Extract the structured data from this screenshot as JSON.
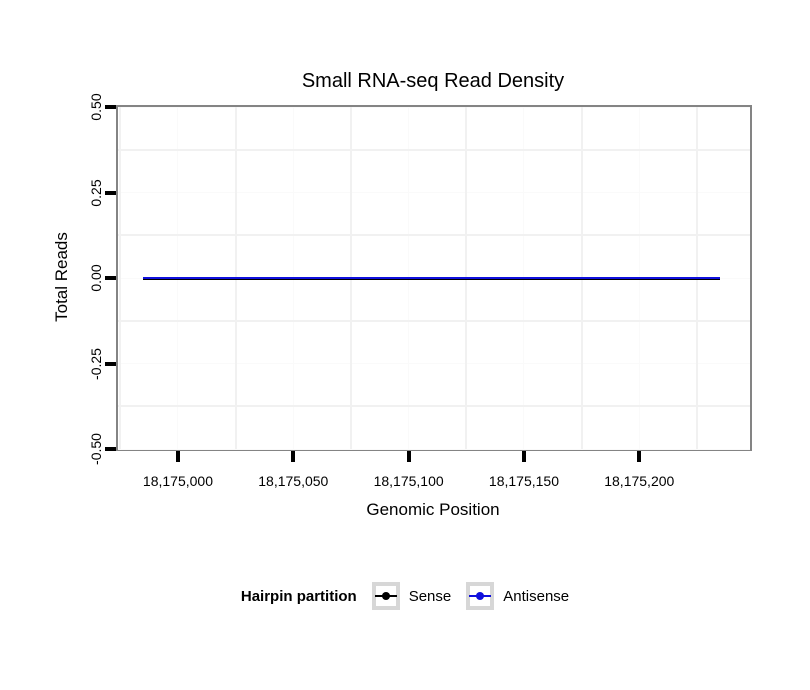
{
  "title": "Small RNA-seq Read Density",
  "legend": {
    "title": "Hairpin partition",
    "entries": [
      "Sense",
      "Antisense"
    ]
  },
  "colors": {
    "sense": "#000000",
    "antisense": "#1010dd",
    "panel_border": "#848484",
    "grid_minor": "#f1f1f1",
    "grid_major": "#fafafa",
    "tick": "#000000",
    "text": "#000000",
    "legend_key_border": "#d7d7d7"
  },
  "chart_data": {
    "type": "line",
    "title": "Small RNA-seq Read Density",
    "xlabel": "Genomic Position",
    "ylabel": "Total Reads",
    "xlim": [
      18174974,
      18175248
    ],
    "ylim": [
      -0.5,
      0.5
    ],
    "x_ticks": [
      {
        "value": 18175000,
        "label": "18,175,000"
      },
      {
        "value": 18175050,
        "label": "18,175,050"
      },
      {
        "value": 18175100,
        "label": "18,175,100"
      },
      {
        "value": 18175150,
        "label": "18,175,150"
      },
      {
        "value": 18175200,
        "label": "18,175,200"
      }
    ],
    "y_ticks": [
      {
        "value": 0.5,
        "label": "0.50"
      },
      {
        "value": 0.25,
        "label": "0.25"
      },
      {
        "value": 0.0,
        "label": "0.00"
      },
      {
        "value": -0.25,
        "label": "-0.25"
      },
      {
        "value": -0.5,
        "label": "-0.50"
      }
    ],
    "grid": "minor gridlines visible only (offset half-step from ticks), light gray on white panel",
    "legend_position": "bottom",
    "legend_title": "Hairpin partition",
    "series": [
      {
        "name": "Sense",
        "color": "#000000",
        "x": [
          18174985,
          18175235
        ],
        "y": [
          0,
          0
        ],
        "line_width": 3
      },
      {
        "name": "Antisense",
        "color": "#1010dd",
        "x": [
          18174985,
          18175235
        ],
        "y": [
          0,
          0
        ],
        "line_width": 1.5
      }
    ],
    "note": "Both series are flat at y = 0 across the full genomic range; they overlap, appearing as a single dark navy/black horizontal line."
  }
}
